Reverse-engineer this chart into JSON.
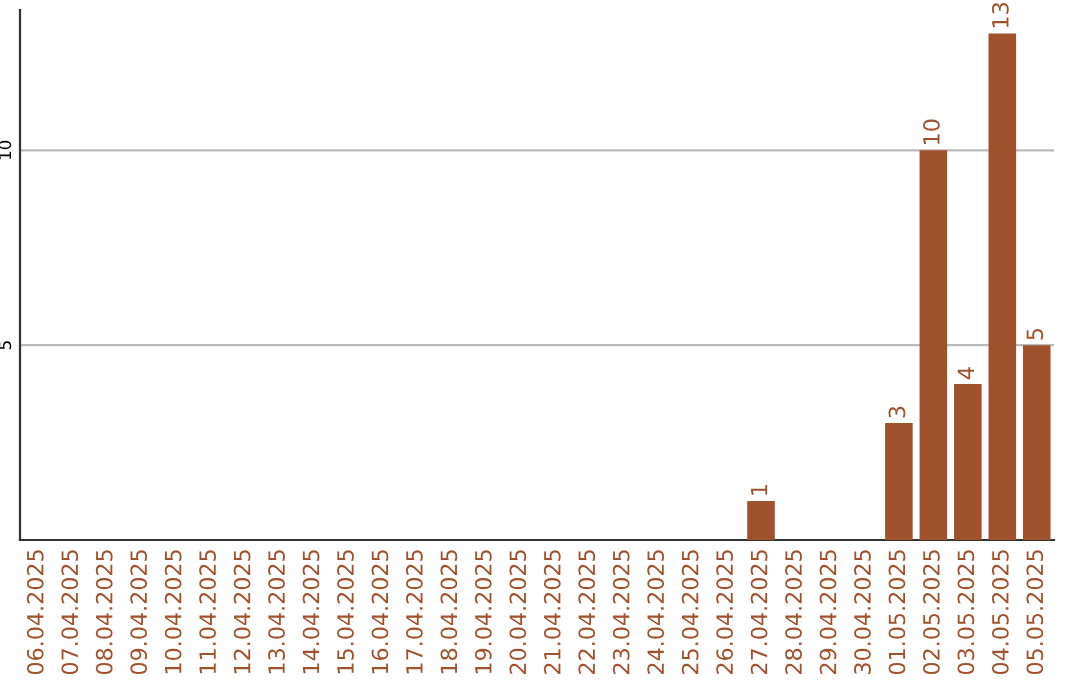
{
  "chart_data": {
    "type": "bar",
    "categories": [
      "06.04.2025",
      "07.04.2025",
      "08.04.2025",
      "09.04.2025",
      "10.04.2025",
      "11.04.2025",
      "12.04.2025",
      "13.04.2025",
      "14.04.2025",
      "15.04.2025",
      "16.04.2025",
      "17.04.2025",
      "18.04.2025",
      "19.04.2025",
      "20.04.2025",
      "21.04.2025",
      "22.04.2025",
      "23.04.2025",
      "24.04.2025",
      "25.04.2025",
      "26.04.2025",
      "27.04.2025",
      "28.04.2025",
      "29.04.2025",
      "30.04.2025",
      "01.05.2025",
      "02.05.2025",
      "03.05.2025",
      "04.05.2025",
      "05.05.2025"
    ],
    "values": [
      0,
      0,
      0,
      0,
      0,
      0,
      0,
      0,
      0,
      0,
      0,
      0,
      0,
      0,
      0,
      0,
      0,
      0,
      0,
      0,
      0,
      1,
      0,
      0,
      0,
      3,
      10,
      4,
      13,
      5
    ],
    "value_labels": [
      null,
      null,
      null,
      null,
      null,
      null,
      null,
      null,
      null,
      null,
      null,
      null,
      null,
      null,
      null,
      null,
      null,
      null,
      null,
      null,
      null,
      "1",
      null,
      null,
      null,
      "3",
      "10",
      "4",
      "13",
      "5"
    ],
    "color": "#a0522d",
    "ylim": [
      0,
      13.6
    ],
    "yticks": [
      5,
      10
    ],
    "grid": "y"
  }
}
